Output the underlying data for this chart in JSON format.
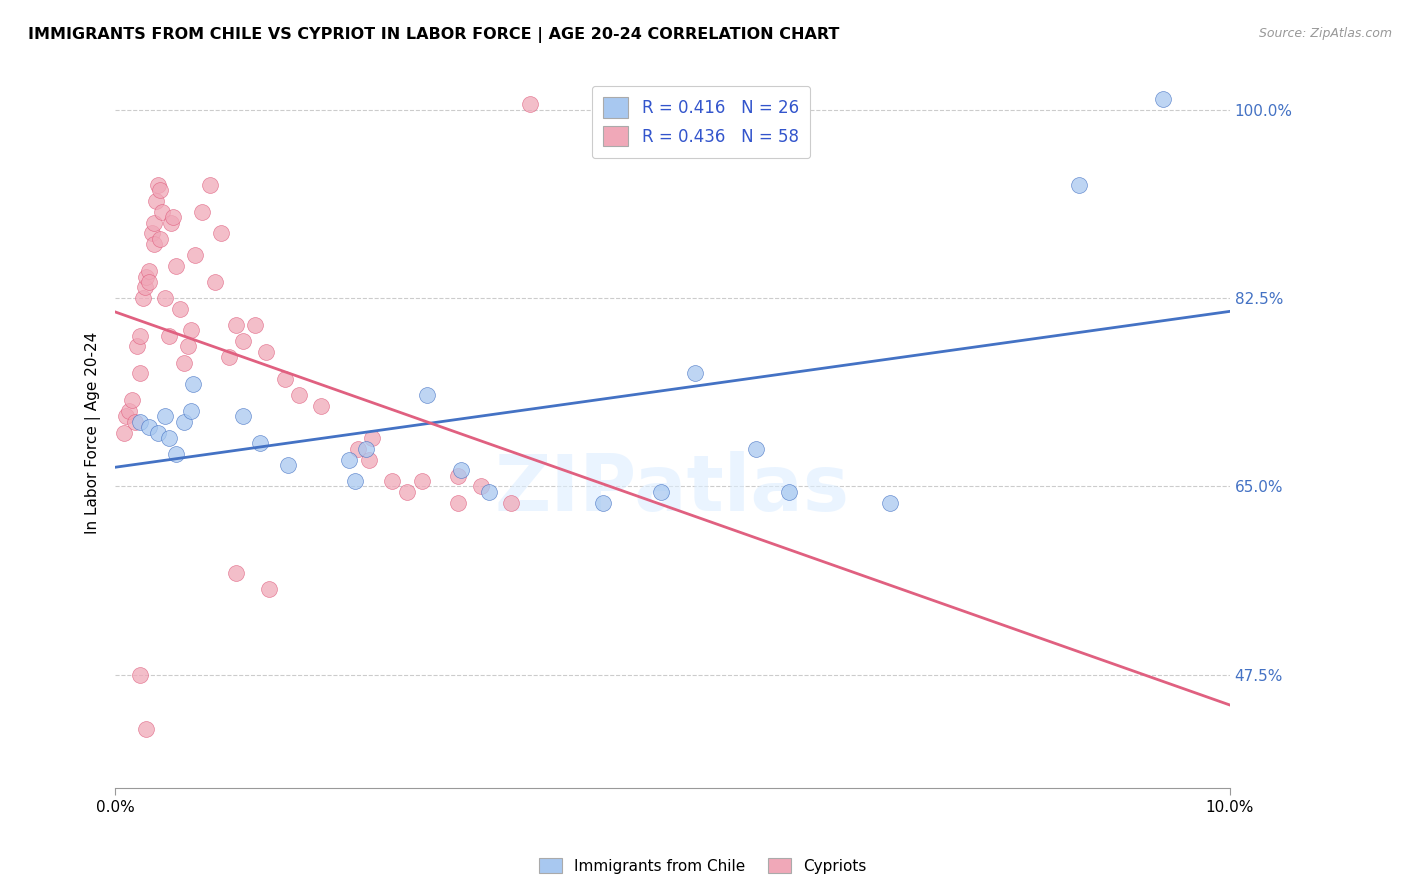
{
  "title": "IMMIGRANTS FROM CHILE VS CYPRIOT IN LABOR FORCE | AGE 20-24 CORRELATION CHART",
  "source": "Source: ZipAtlas.com",
  "ylabel": "In Labor Force | Age 20-24",
  "xmin": 0.0,
  "xmax": 10.0,
  "ymin": 37.0,
  "ymax": 103.0,
  "yticks": [
    47.5,
    65.0,
    82.5,
    100.0
  ],
  "grid_color": "#cccccc",
  "chile_color": "#a8c8f0",
  "cypriot_color": "#f0a8b8",
  "chile_line_color": "#4472c4",
  "cypriot_line_color": "#e06080",
  "watermark": "ZIPatlas",
  "legend_text_color": "#3355cc",
  "chile_scatter_x": [
    0.22,
    0.3,
    0.38,
    0.45,
    0.48,
    0.55,
    0.62,
    0.68,
    0.7,
    1.15,
    1.3,
    1.55,
    2.1,
    2.15,
    2.25,
    2.8,
    3.1,
    3.35,
    4.38,
    4.9,
    5.2,
    5.75,
    6.05,
    6.95,
    8.65,
    9.4
  ],
  "chile_scatter_y": [
    71.0,
    70.5,
    70.0,
    71.5,
    69.5,
    68.0,
    71.0,
    72.0,
    74.5,
    71.5,
    69.0,
    67.0,
    67.5,
    65.5,
    68.5,
    73.5,
    66.5,
    64.5,
    63.5,
    64.5,
    75.5,
    68.5,
    64.5,
    63.5,
    93.0,
    101.0
  ],
  "cypriot_scatter_x": [
    0.08,
    0.1,
    0.12,
    0.15,
    0.18,
    0.2,
    0.22,
    0.22,
    0.25,
    0.27,
    0.28,
    0.3,
    0.3,
    0.33,
    0.35,
    0.35,
    0.37,
    0.38,
    0.4,
    0.4,
    0.42,
    0.45,
    0.48,
    0.5,
    0.52,
    0.55,
    0.58,
    0.62,
    0.65,
    0.68,
    0.72,
    0.78,
    0.85,
    0.9,
    0.95,
    1.02,
    1.08,
    1.15,
    1.25,
    1.35,
    1.52,
    1.65,
    1.85,
    2.18,
    2.28,
    2.3,
    2.48,
    2.62,
    2.75,
    3.08,
    3.08,
    3.28,
    3.55,
    0.22,
    0.28,
    1.08,
    1.38,
    3.72
  ],
  "cypriot_scatter_y": [
    70.0,
    71.5,
    72.0,
    73.0,
    71.0,
    78.0,
    75.5,
    79.0,
    82.5,
    83.5,
    84.5,
    85.0,
    84.0,
    88.5,
    89.5,
    87.5,
    91.5,
    93.0,
    92.5,
    88.0,
    90.5,
    82.5,
    79.0,
    89.5,
    90.0,
    85.5,
    81.5,
    76.5,
    78.0,
    79.5,
    86.5,
    90.5,
    93.0,
    84.0,
    88.5,
    77.0,
    80.0,
    78.5,
    80.0,
    77.5,
    75.0,
    73.5,
    72.5,
    68.5,
    67.5,
    69.5,
    65.5,
    64.5,
    65.5,
    66.0,
    63.5,
    65.0,
    63.5,
    47.5,
    42.5,
    57.0,
    55.5,
    100.5
  ]
}
